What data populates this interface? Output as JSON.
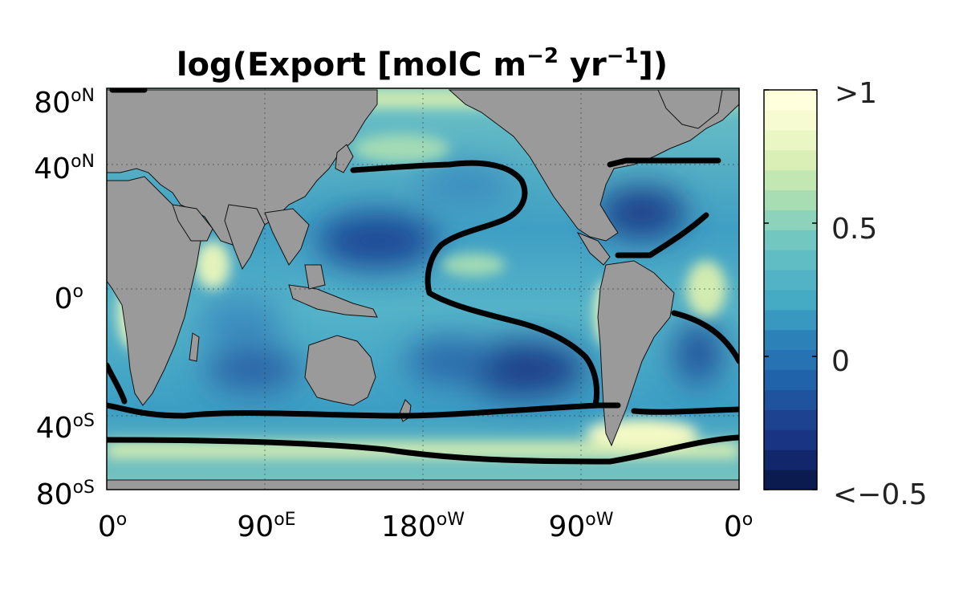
{
  "title_parts": {
    "prefix": "log(Export [molC m",
    "sup1": "−2",
    "middle": " yr",
    "sup2": "−1",
    "suffix": "])"
  },
  "x_ticks": [
    {
      "label": "0",
      "unit": "o"
    },
    {
      "label": "90",
      "unit": "oE"
    },
    {
      "label": "180",
      "unit": "oW"
    },
    {
      "label": "90",
      "unit": "oW"
    },
    {
      "label": "0",
      "unit": "o"
    }
  ],
  "y_ticks": [
    {
      "label": "80",
      "unit": "oN"
    },
    {
      "label": "40",
      "unit": "oN"
    },
    {
      "label": "0",
      "unit": "o"
    },
    {
      "label": "40",
      "unit": "oS"
    },
    {
      "label": "80",
      "unit": "oS"
    }
  ],
  "colorbar": {
    "tick_labels": [
      ">1",
      "0.5",
      "0",
      "<−0.5"
    ],
    "tick_values": [
      1,
      0.5,
      0,
      -0.5
    ],
    "range": [
      -0.5,
      1
    ],
    "levels": 20,
    "colors": [
      "#0b1b4f",
      "#17307f",
      "#1f4a96",
      "#2166ac",
      "#2c7fb8",
      "#41a6c4",
      "#55b7c5",
      "#74c8c0",
      "#a3dbb5",
      "#d2ecb0",
      "#eff8c8",
      "#ffffdd"
    ]
  },
  "map": {
    "land_color": "#9a9a9a",
    "ocean_low_color": "#23539b",
    "ocean_mid_color": "#3f9fc4",
    "ocean_high_color": "#f4f9c4",
    "contour_color": "#000000"
  }
}
